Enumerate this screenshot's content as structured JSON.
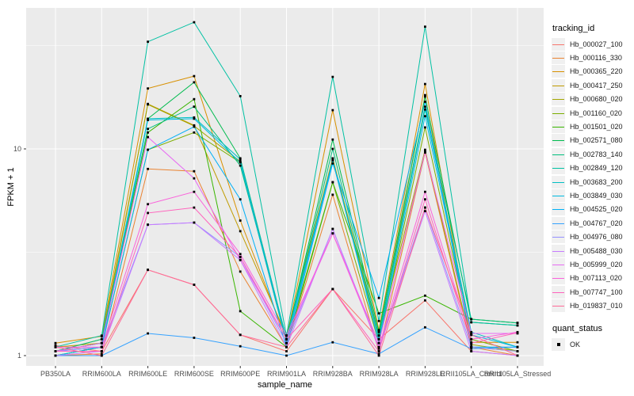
{
  "chart_data": {
    "type": "line",
    "xlabel": "sample_name",
    "ylabel": "FPKM + 1",
    "y_scale": "log10",
    "y_tick_values": [
      1,
      10
    ],
    "y_tick_labels": [
      "1",
      "10"
    ],
    "y_minor_breaks": [
      3.1623,
      31.623
    ],
    "ylim": [
      0.88,
      48
    ],
    "legend_title": "tracking_id",
    "legend_position": "right",
    "panel_bg": "#EBEBEB",
    "grid_color": "#FFFFFF",
    "point_color": "#000000",
    "quant_legend": {
      "title": "quant_status",
      "items": [
        {
          "label": "OK"
        }
      ]
    },
    "categories": [
      "PB350LA",
      "RRIM600LA",
      "RRIM600LE",
      "RRIM600SE",
      "RRIM600PE",
      "RRIM901LA",
      "RRIM928BA",
      "RRIM928LA",
      "RRIM928LE",
      "RRII105LA_Control",
      "RRII105LA_Stressed"
    ],
    "series": [
      {
        "name": "Hb_000027_100",
        "color": "#F8766D",
        "values": [
          1.12,
          1.05,
          2.6,
          2.2,
          1.26,
          1.05,
          2.1,
          1.2,
          1.85,
          1.05,
          1.0
        ]
      },
      {
        "name": "Hb_000116_330",
        "color": "#EA8331",
        "values": [
          1.0,
          1.02,
          8.0,
          7.8,
          2.55,
          1.1,
          6.0,
          1.05,
          9.6,
          1.1,
          1.0
        ]
      },
      {
        "name": "Hb_000365_220",
        "color": "#D89000",
        "values": [
          1.15,
          1.24,
          19.6,
          22.5,
          4.5,
          1.2,
          15.4,
          1.33,
          20.6,
          1.16,
          1.16
        ]
      },
      {
        "name": "Hb_000417_250",
        "color": "#C09B00",
        "values": [
          1.1,
          1.15,
          16.5,
          13.0,
          4.0,
          1.25,
          9.0,
          1.2,
          18.2,
          1.1,
          1.05
        ]
      },
      {
        "name": "Hb_000680_020",
        "color": "#A3A500",
        "values": [
          1.05,
          1.2,
          16.4,
          12.9,
          8.7,
          1.2,
          9.0,
          1.25,
          9.9,
          1.13,
          1.05
        ]
      },
      {
        "name": "Hb_001160_020",
        "color": "#7CAE00",
        "values": [
          1.0,
          1.1,
          9.9,
          12.0,
          8.6,
          1.15,
          6.9,
          1.15,
          12.7,
          1.2,
          1.05
        ]
      },
      {
        "name": "Hb_001501_020",
        "color": "#39B600",
        "values": [
          1.05,
          1.15,
          12.0,
          17.4,
          1.64,
          1.1,
          6.9,
          1.6,
          1.95,
          1.5,
          1.44
        ]
      },
      {
        "name": "Hb_002571_080",
        "color": "#00BB4E",
        "values": [
          1.0,
          1.1,
          14.0,
          21.0,
          9.0,
          1.2,
          11.1,
          1.3,
          17.9,
          1.45,
          1.4
        ]
      },
      {
        "name": "Hb_002783_140",
        "color": "#00BF7D",
        "values": [
          1.05,
          1.2,
          12.5,
          16.0,
          8.3,
          1.2,
          10.0,
          1.25,
          16.0,
          1.5,
          1.44
        ]
      },
      {
        "name": "Hb_002849_120",
        "color": "#00C1A3",
        "values": [
          1.1,
          1.25,
          33.0,
          41.0,
          18.0,
          1.25,
          22.3,
          1.47,
          39.0,
          1.45,
          1.4
        ]
      },
      {
        "name": "Hb_003683_200",
        "color": "#00BFC4",
        "values": [
          1.05,
          1.15,
          14.0,
          14.2,
          8.9,
          1.2,
          8.8,
          1.2,
          15.5,
          1.3,
          1.1
        ]
      },
      {
        "name": "Hb_003849_030",
        "color": "#00BAE0",
        "values": [
          1.0,
          1.1,
          13.8,
          14.0,
          8.6,
          1.15,
          8.8,
          1.15,
          14.4,
          1.26,
          1.1
        ]
      },
      {
        "name": "Hb_004525_020",
        "color": "#00B0F6",
        "values": [
          1.05,
          1.1,
          9.9,
          12.8,
          5.7,
          1.1,
          8.5,
          1.9,
          16.9,
          1.1,
          1.1
        ]
      },
      {
        "name": "Hb_004767_020",
        "color": "#35A2FF",
        "values": [
          1.0,
          1.0,
          1.28,
          1.22,
          1.11,
          1.0,
          1.16,
          1.02,
          1.37,
          1.08,
          1.1
        ]
      },
      {
        "name": "Hb_004976_080",
        "color": "#9590FF",
        "values": [
          1.05,
          1.1,
          4.3,
          4.4,
          3.0,
          1.15,
          4.1,
          1.1,
          5.2,
          1.1,
          1.05
        ]
      },
      {
        "name": "Hb_005488_030",
        "color": "#C77CFF",
        "values": [
          1.0,
          1.05,
          4.3,
          4.4,
          2.9,
          1.1,
          4.1,
          1.08,
          5.0,
          1.05,
          1.0
        ]
      },
      {
        "name": "Hb_005999_020",
        "color": "#E76BF3",
        "values": [
          1.05,
          1.15,
          11.4,
          7.2,
          2.9,
          1.2,
          3.9,
          1.15,
          9.7,
          1.28,
          1.28
        ]
      },
      {
        "name": "Hb_007113_020",
        "color": "#FA62DB",
        "values": [
          1.1,
          1.1,
          5.4,
          6.2,
          3.1,
          1.25,
          3.9,
          1.1,
          6.2,
          1.2,
          1.3
        ]
      },
      {
        "name": "Hb_007747_100",
        "color": "#FF62BC",
        "values": [
          1.05,
          1.05,
          4.9,
          5.2,
          3.0,
          1.2,
          2.1,
          1.05,
          5.7,
          1.15,
          1.29
        ]
      },
      {
        "name": "Hb_019837_010",
        "color": "#FF6A98",
        "values": [
          1.1,
          1.0,
          2.6,
          2.2,
          1.26,
          1.1,
          2.1,
          1.0,
          5.2,
          1.26,
          1.0
        ]
      }
    ]
  }
}
